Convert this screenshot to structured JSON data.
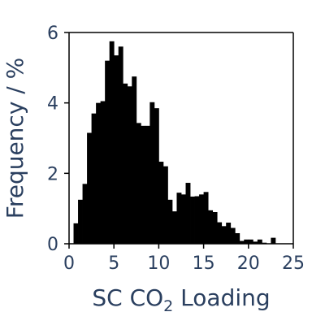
{
  "chart_data": {
    "type": "bar",
    "subtype": "histogram",
    "bin_width": 0.5,
    "x_start": 0.5,
    "values": [
      0.58,
      1.25,
      1.7,
      3.15,
      3.7,
      4.0,
      4.05,
      5.2,
      5.75,
      5.35,
      5.6,
      4.55,
      4.47,
      4.75,
      3.43,
      3.35,
      3.35,
      4.02,
      3.85,
      2.33,
      2.2,
      1.25,
      0.92,
      1.45,
      1.4,
      1.73,
      1.34,
      1.35,
      1.4,
      1.47,
      0.95,
      0.9,
      0.61,
      0.5,
      0.6,
      0.45,
      0.3,
      0.08,
      0.12,
      0.12,
      0.06,
      0.12,
      0.03,
      0.0,
      0.17
    ],
    "xlim": [
      0,
      25
    ],
    "ylim": [
      0,
      6
    ],
    "xticks": [
      "0",
      "5",
      "10",
      "15",
      "20",
      "25"
    ],
    "yticks": [
      "0",
      "2",
      "4",
      "6"
    ],
    "xlabel": {
      "main": "SC CO",
      "subscript": "2",
      "rest": " Loading"
    },
    "ylabel": "Frequency / %",
    "bar_color": "#000000",
    "text_color": "#2a3f5f"
  }
}
